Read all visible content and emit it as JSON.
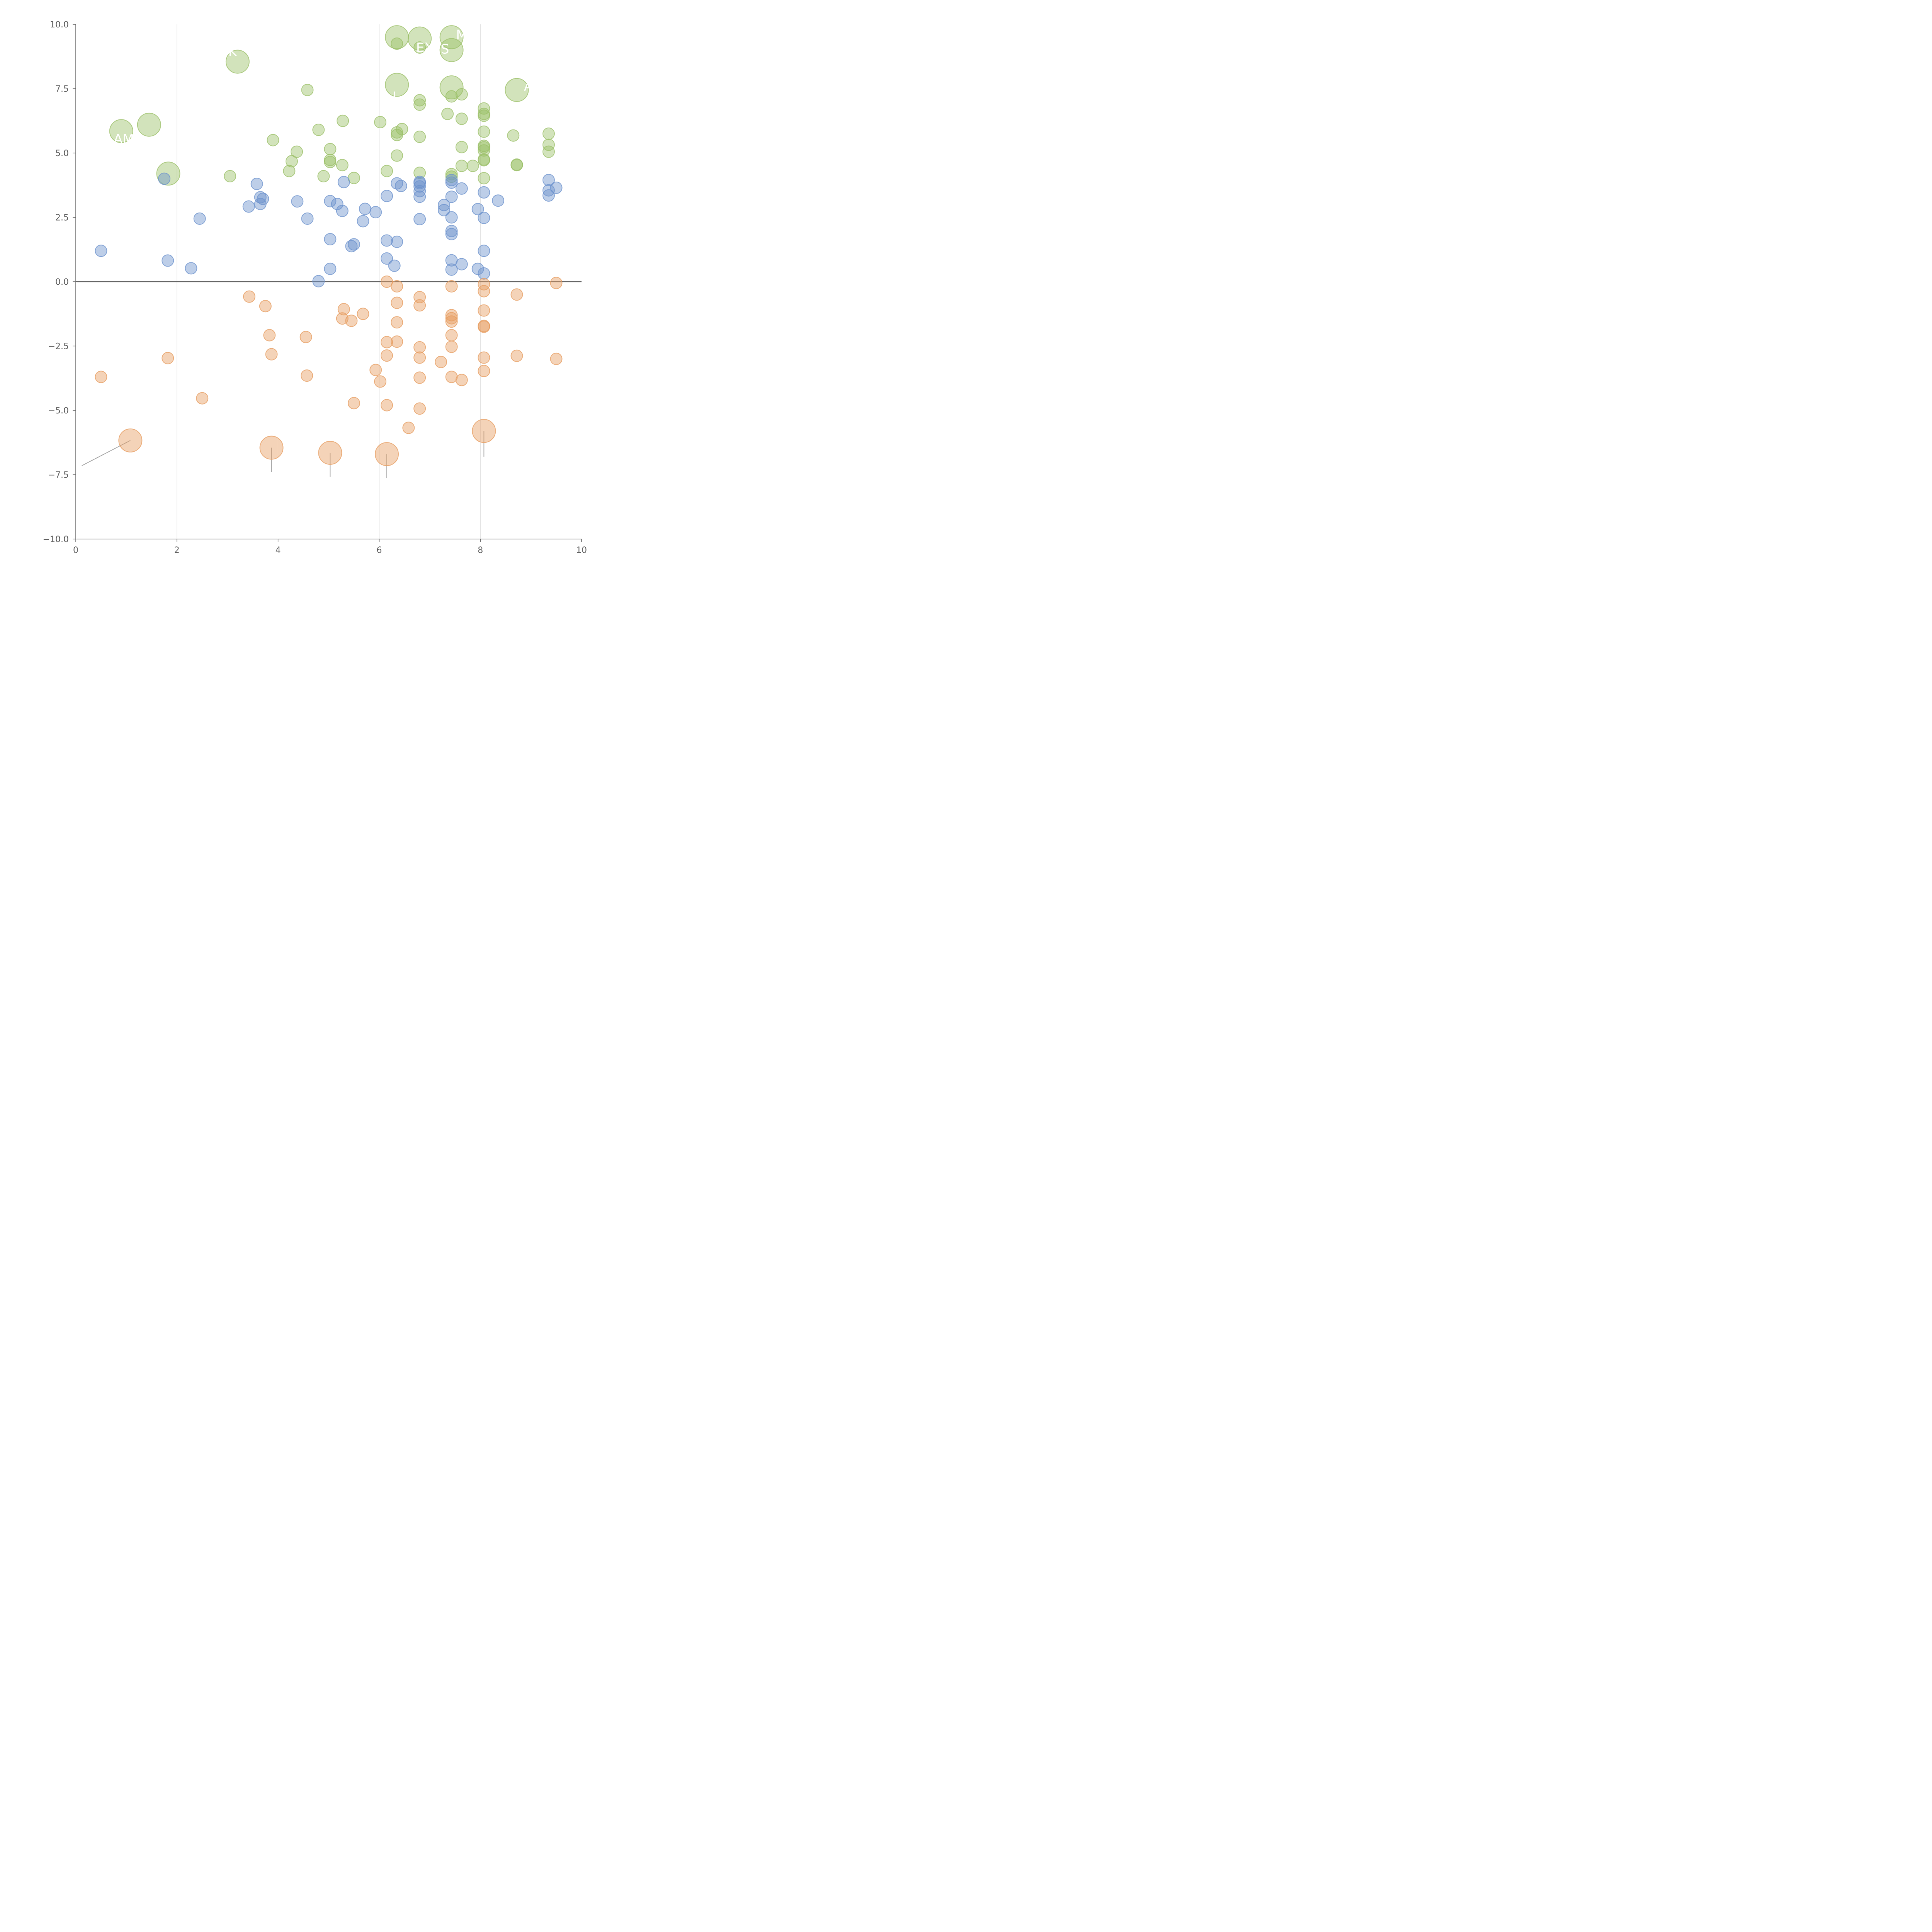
{
  "colors": {
    "background": "#ffffff",
    "axis": "#666666",
    "grid": "#d9d9d9",
    "zero_line": "#666666",
    "leader": "#aaaaaa",
    "label": "#ffffff",
    "series": {
      "green": "#9cc069",
      "blue": "#6d93cd",
      "orange": "#e79d61"
    }
  },
  "chart_data": {
    "type": "scatter",
    "title": "",
    "xlabel": "",
    "ylabel": "",
    "xlim": [
      0,
      10
    ],
    "ylim": [
      -10,
      10
    ],
    "xticks": [
      "0",
      "2",
      "4",
      "6",
      "8",
      "10"
    ],
    "yticks": [
      "−10.0",
      "−7.5",
      "−5.0",
      "−2.5",
      "0.0",
      "2.5",
      "5.0",
      "7.5",
      "10.0"
    ],
    "grid": "vertical",
    "legend": "none",
    "series": [
      {
        "name": "green",
        "points": [
          [
            6.35,
            9.25,
            1
          ],
          [
            6.8,
            9.1,
            1
          ],
          [
            4.58,
            7.45,
            1
          ],
          [
            6.8,
            7.05,
            1
          ],
          [
            6.8,
            6.88,
            1
          ],
          [
            7.43,
            7.2,
            1
          ],
          [
            7.63,
            7.28,
            1
          ],
          [
            6.02,
            6.2,
            1
          ],
          [
            5.28,
            6.25,
            1
          ],
          [
            7.35,
            6.52,
            1
          ],
          [
            7.63,
            6.33,
            1
          ],
          [
            8.07,
            6.73,
            1
          ],
          [
            8.07,
            6.52,
            1
          ],
          [
            8.07,
            6.45,
            1
          ],
          [
            4.8,
            5.9,
            1
          ],
          [
            6.45,
            5.93,
            1
          ],
          [
            6.35,
            5.8,
            1
          ],
          [
            6.35,
            5.7,
            1
          ],
          [
            6.8,
            5.63,
            1
          ],
          [
            8.07,
            5.83,
            1
          ],
          [
            8.65,
            5.68,
            1
          ],
          [
            9.35,
            5.75,
            1
          ],
          [
            3.9,
            5.5,
            1
          ],
          [
            7.63,
            5.23,
            1
          ],
          [
            8.07,
            5.28,
            1
          ],
          [
            8.07,
            5.22,
            1
          ],
          [
            8.07,
            5.1,
            1
          ],
          [
            5.03,
            5.15,
            1
          ],
          [
            4.37,
            5.05,
            1
          ],
          [
            9.35,
            5.32,
            1
          ],
          [
            9.35,
            5.05,
            1
          ],
          [
            4.27,
            4.68,
            1
          ],
          [
            5.03,
            4.73,
            1
          ],
          [
            5.03,
            4.65,
            1
          ],
          [
            5.27,
            4.53,
            1
          ],
          [
            6.35,
            4.9,
            1
          ],
          [
            7.63,
            4.5,
            1
          ],
          [
            7.85,
            4.5,
            1
          ],
          [
            8.07,
            4.75,
            1
          ],
          [
            8.07,
            4.72,
            1
          ],
          [
            8.72,
            4.55,
            1
          ],
          [
            8.72,
            4.53,
            1
          ],
          [
            4.22,
            4.3,
            1
          ],
          [
            6.15,
            4.3,
            1
          ],
          [
            6.8,
            4.23,
            1
          ],
          [
            7.43,
            4.18,
            1
          ],
          [
            7.43,
            4.08,
            1
          ],
          [
            3.05,
            4.1,
            1
          ],
          [
            4.9,
            4.1,
            1
          ],
          [
            5.5,
            4.03,
            1
          ],
          [
            8.07,
            4.02,
            1
          ],
          [
            6.35,
            9.5,
            2,
            "G"
          ],
          [
            6.8,
            9.45,
            2,
            "EX"
          ],
          [
            7.43,
            9.5,
            2,
            "M"
          ],
          [
            7.43,
            9.0,
            2,
            "S"
          ],
          [
            3.2,
            8.55,
            2,
            "K"
          ],
          [
            6.35,
            7.65,
            2,
            "I"
          ],
          [
            7.43,
            7.55,
            2,
            ""
          ],
          [
            8.72,
            7.45,
            2,
            "A"
          ],
          [
            1.45,
            6.1,
            2,
            ""
          ],
          [
            0.9,
            5.85,
            2,
            "AM"
          ],
          [
            1.83,
            4.2,
            2,
            ""
          ]
        ]
      },
      {
        "name": "blue",
        "points": [
          [
            1.75,
            4.0,
            1
          ],
          [
            3.58,
            3.8,
            1
          ],
          [
            3.65,
            3.28,
            1
          ],
          [
            3.7,
            3.22,
            1
          ],
          [
            3.65,
            3.02,
            1
          ],
          [
            3.42,
            2.92,
            1
          ],
          [
            2.45,
            2.45,
            1
          ],
          [
            0.5,
            1.2,
            1
          ],
          [
            1.82,
            0.82,
            1
          ],
          [
            2.28,
            0.52,
            1
          ],
          [
            4.38,
            3.12,
            1
          ],
          [
            4.58,
            2.45,
            1
          ],
          [
            5.03,
            3.13,
            1
          ],
          [
            5.17,
            3.02,
            1
          ],
          [
            5.27,
            2.75,
            1
          ],
          [
            5.3,
            3.87,
            1
          ],
          [
            5.72,
            2.83,
            1
          ],
          [
            5.93,
            2.7,
            1
          ],
          [
            5.68,
            2.35,
            1
          ],
          [
            5.03,
            1.65,
            1
          ],
          [
            5.5,
            1.45,
            1
          ],
          [
            5.45,
            1.38,
            1
          ],
          [
            5.03,
            0.5,
            1
          ],
          [
            4.8,
            0.02,
            1
          ],
          [
            6.15,
            3.33,
            1
          ],
          [
            6.35,
            3.82,
            1
          ],
          [
            6.43,
            3.72,
            1
          ],
          [
            6.8,
            3.88,
            1
          ],
          [
            6.8,
            3.83,
            1
          ],
          [
            6.8,
            3.7,
            1
          ],
          [
            6.8,
            3.52,
            1
          ],
          [
            6.8,
            3.3,
            1
          ],
          [
            6.8,
            2.43,
            1
          ],
          [
            6.15,
            1.6,
            1
          ],
          [
            6.35,
            1.55,
            1
          ],
          [
            6.15,
            0.9,
            1
          ],
          [
            6.3,
            0.62,
            1
          ],
          [
            7.28,
            2.98,
            1
          ],
          [
            7.28,
            2.78,
            1
          ],
          [
            7.43,
            3.95,
            1
          ],
          [
            7.43,
            3.85,
            1
          ],
          [
            7.43,
            3.3,
            1
          ],
          [
            7.43,
            2.5,
            1
          ],
          [
            7.43,
            1.97,
            1
          ],
          [
            7.43,
            1.85,
            1
          ],
          [
            7.43,
            0.83,
            1
          ],
          [
            7.43,
            0.47,
            1
          ],
          [
            7.63,
            3.62,
            1
          ],
          [
            7.63,
            0.68,
            1
          ],
          [
            7.95,
            2.82,
            1
          ],
          [
            7.95,
            0.5,
            1
          ],
          [
            8.07,
            3.47,
            1
          ],
          [
            8.07,
            2.48,
            1
          ],
          [
            8.07,
            1.2,
            1
          ],
          [
            8.07,
            0.32,
            1
          ],
          [
            8.35,
            3.15,
            1
          ],
          [
            9.35,
            3.95,
            1
          ],
          [
            9.35,
            3.55,
            1
          ],
          [
            9.35,
            3.35,
            1
          ],
          [
            9.5,
            3.65,
            1
          ]
        ]
      },
      {
        "name": "orange",
        "points": [
          [
            6.15,
            0.0,
            1
          ],
          [
            6.35,
            -0.18,
            1
          ],
          [
            7.43,
            -0.18,
            1
          ],
          [
            8.07,
            -0.1,
            1
          ],
          [
            8.07,
            -0.37,
            1
          ],
          [
            9.5,
            -0.05,
            1
          ],
          [
            3.43,
            -0.58,
            1
          ],
          [
            3.75,
            -0.95,
            1
          ],
          [
            6.35,
            -0.82,
            1
          ],
          [
            6.8,
            -0.6,
            1
          ],
          [
            6.8,
            -0.92,
            1
          ],
          [
            8.72,
            -0.5,
            1
          ],
          [
            5.3,
            -1.07,
            1
          ],
          [
            5.68,
            -1.25,
            1
          ],
          [
            5.27,
            -1.43,
            1
          ],
          [
            5.45,
            -1.52,
            1
          ],
          [
            6.35,
            -1.58,
            1
          ],
          [
            7.43,
            -1.3,
            1
          ],
          [
            7.43,
            -1.42,
            1
          ],
          [
            7.43,
            -1.55,
            1
          ],
          [
            8.07,
            -1.12,
            1
          ],
          [
            8.07,
            -1.72,
            1
          ],
          [
            8.07,
            -1.75,
            1
          ],
          [
            3.83,
            -2.08,
            1
          ],
          [
            4.55,
            -2.15,
            1
          ],
          [
            6.15,
            -2.35,
            1
          ],
          [
            6.35,
            -2.33,
            1
          ],
          [
            7.43,
            -2.08,
            1
          ],
          [
            6.8,
            -2.55,
            1
          ],
          [
            7.43,
            -2.53,
            1
          ],
          [
            1.82,
            -2.97,
            1
          ],
          [
            3.87,
            -2.82,
            1
          ],
          [
            6.15,
            -2.87,
            1
          ],
          [
            6.8,
            -2.95,
            1
          ],
          [
            7.22,
            -3.12,
            1
          ],
          [
            8.07,
            -2.95,
            1
          ],
          [
            8.72,
            -2.88,
            1
          ],
          [
            9.5,
            -3.0,
            1
          ],
          [
            0.5,
            -3.7,
            1
          ],
          [
            4.57,
            -3.65,
            1
          ],
          [
            5.93,
            -3.43,
            1
          ],
          [
            6.02,
            -3.88,
            1
          ],
          [
            6.8,
            -3.73,
            1
          ],
          [
            7.43,
            -3.7,
            1
          ],
          [
            7.63,
            -3.82,
            1
          ],
          [
            8.07,
            -3.47,
            1
          ],
          [
            2.5,
            -4.53,
            1
          ],
          [
            5.5,
            -4.72,
            1
          ],
          [
            6.15,
            -4.8,
            1
          ],
          [
            6.8,
            -4.93,
            1
          ],
          [
            6.58,
            -5.68,
            1
          ],
          [
            1.08,
            -6.17,
            2,
            ""
          ],
          [
            3.87,
            -6.45,
            2,
            ""
          ],
          [
            5.03,
            -6.65,
            2,
            ""
          ],
          [
            6.15,
            -6.7,
            2,
            ""
          ],
          [
            8.07,
            -5.8,
            2,
            ""
          ]
        ]
      }
    ],
    "annotations": [
      {
        "series": "green",
        "index": 51,
        "text": "G",
        "anchor": [
          6.13,
          9.55
        ],
        "offset": [
          -28,
          0
        ]
      },
      {
        "series": "green",
        "index": 52,
        "text": "EX",
        "anchor": [
          6.9,
          9.1
        ],
        "offset": [
          0,
          0
        ]
      },
      {
        "series": "green",
        "index": 53,
        "text": "M",
        "anchor": [
          7.63,
          9.6
        ],
        "offset": [
          0,
          0
        ]
      },
      {
        "series": "green",
        "index": 54,
        "text": "S",
        "anchor": [
          7.3,
          9.05
        ],
        "offset": [
          0,
          0
        ]
      },
      {
        "series": "green",
        "index": 55,
        "text": "K",
        "anchor": [
          3.1,
          8.95
        ],
        "offset": [
          0,
          0
        ]
      },
      {
        "series": "green",
        "index": 56,
        "text": "I",
        "anchor": [
          6.3,
          7.2
        ],
        "offset": [
          0,
          0
        ]
      },
      {
        "series": "green",
        "index": 58,
        "text": "A",
        "anchor": [
          8.95,
          7.6
        ],
        "offset": [
          0,
          0
        ]
      },
      {
        "series": "green",
        "index": 60,
        "text": "AM",
        "anchor": [
          0.95,
          5.55
        ],
        "offset": [
          0,
          0
        ]
      }
    ],
    "leaders": [
      {
        "from": [
          6.35,
          9.5
        ],
        "to": [
          6.1,
          9.55
        ]
      },
      {
        "from": [
          7.43,
          9.0
        ],
        "to": [
          7.0,
          9.1
        ]
      },
      {
        "from": [
          3.2,
          8.55
        ],
        "to": [
          3.05,
          8.62
        ]
      },
      {
        "from": [
          6.35,
          7.65
        ],
        "to": [
          6.2,
          7.4
        ]
      },
      {
        "from": [
          7.43,
          7.55
        ],
        "to": [
          7.7,
          7.3
        ]
      },
      {
        "from": [
          8.72,
          7.45
        ],
        "to": [
          8.95,
          7.6
        ]
      },
      {
        "from": [
          1.45,
          6.1
        ],
        "to": [
          1.7,
          6.3
        ]
      },
      {
        "from": [
          1.83,
          4.2
        ],
        "to": [
          2.0,
          4.4
        ]
      },
      {
        "from": [
          1.08,
          -6.17
        ],
        "to": [
          0.12,
          -7.15
        ]
      },
      {
        "from": [
          3.87,
          -6.45
        ],
        "to": [
          3.87,
          -7.4
        ]
      },
      {
        "from": [
          5.03,
          -6.65
        ],
        "to": [
          5.03,
          -7.58
        ]
      },
      {
        "from": [
          6.15,
          -6.7
        ],
        "to": [
          6.15,
          -7.63
        ]
      },
      {
        "from": [
          8.07,
          -5.8
        ],
        "to": [
          8.07,
          -6.8
        ]
      }
    ]
  }
}
